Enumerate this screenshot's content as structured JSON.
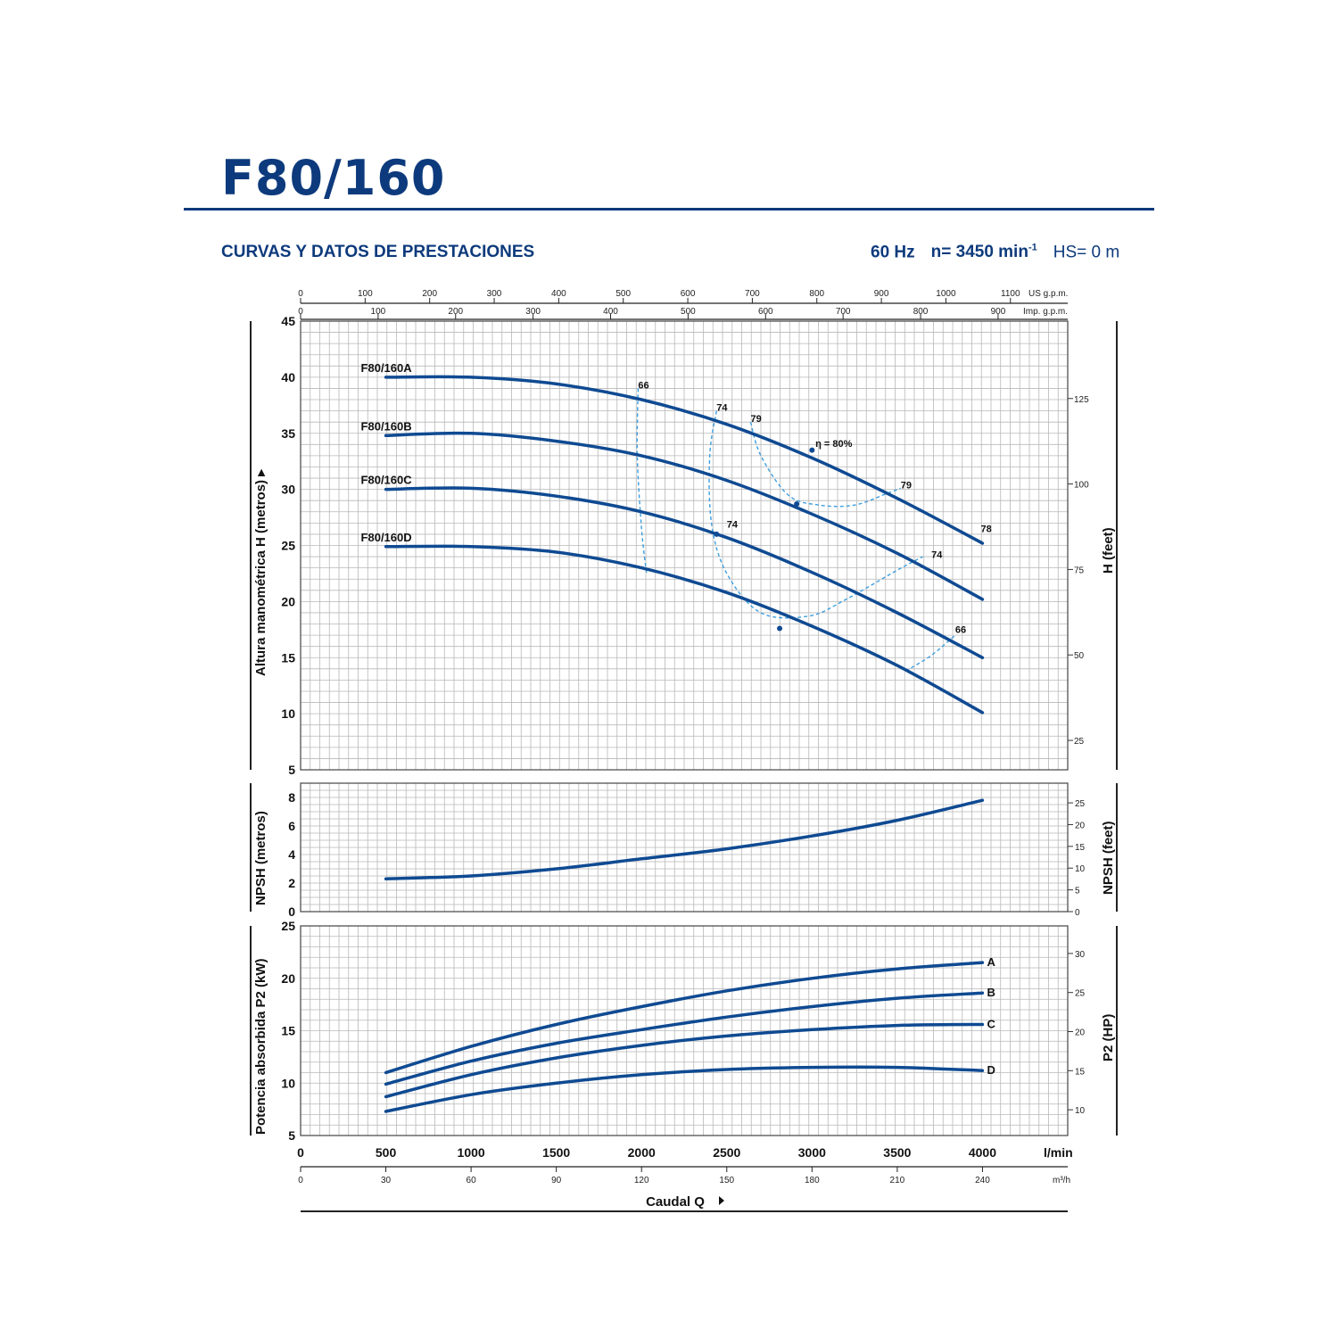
{
  "header": {
    "model": "F80/160",
    "subtitle": "CURVAS Y DATOS DE PRESTACIONES",
    "frequency": "60 Hz",
    "speed": "n= 3450 min",
    "speed_exp": "-1",
    "hs": "HS= 0 m"
  },
  "chart_data": {
    "type": "line",
    "x_axis": {
      "label": "Caudal Q",
      "unit": "l/min",
      "range": [
        0,
        4500
      ],
      "ticks": [
        0,
        500,
        1000,
        1500,
        2000,
        2500,
        3000,
        3500,
        4000
      ],
      "secondary_m3h": {
        "unit": "m³/h",
        "ticks": [
          0,
          30,
          60,
          90,
          120,
          150,
          180,
          210,
          240
        ]
      },
      "top_us_gpm": {
        "unit": "US g.p.m.",
        "ticks": [
          0,
          100,
          200,
          300,
          400,
          500,
          600,
          700,
          800,
          900,
          1000,
          1100
        ]
      },
      "top_imp_gpm": {
        "unit": "Imp. g.p.m.",
        "ticks": [
          0,
          100,
          200,
          300,
          400,
          500,
          600,
          700,
          800,
          900
        ]
      }
    },
    "head": {
      "ylabel": "Altura manométrica H (metros)",
      "ylabel_right": "H (feet)",
      "ylim": [
        5,
        45
      ],
      "yticks": [
        5,
        10,
        15,
        20,
        25,
        30,
        35,
        40,
        45
      ],
      "yticks_right": [
        25,
        50,
        75,
        100,
        125
      ],
      "series": [
        {
          "name": "F80/160A",
          "x": [
            500,
            1000,
            1500,
            2000,
            2500,
            3000,
            3500,
            4000
          ],
          "y": [
            40.0,
            40.0,
            39.4,
            38.0,
            35.8,
            32.8,
            29.2,
            25.2
          ]
        },
        {
          "name": "F80/160B",
          "x": [
            500,
            1000,
            1500,
            2000,
            2500,
            3000,
            3500,
            4000
          ],
          "y": [
            34.8,
            35.0,
            34.3,
            33.0,
            30.8,
            27.8,
            24.3,
            20.2
          ]
        },
        {
          "name": "F80/160C",
          "x": [
            500,
            1000,
            1500,
            2000,
            2500,
            3000,
            3500,
            4000
          ],
          "y": [
            30.0,
            30.1,
            29.4,
            28.0,
            25.7,
            22.6,
            19.0,
            15.0
          ]
        },
        {
          "name": "F80/160D",
          "x": [
            500,
            1000,
            1500,
            2000,
            2500,
            3000,
            3500,
            4000
          ],
          "y": [
            24.9,
            24.9,
            24.4,
            23.0,
            20.8,
            17.8,
            14.3,
            10.1
          ]
        }
      ],
      "efficiency_labels": [
        {
          "text": "66",
          "x": 1980,
          "y": 39.0
        },
        {
          "text": "74",
          "x": 2440,
          "y": 37.0
        },
        {
          "text": "79",
          "x": 2640,
          "y": 36.0
        },
        {
          "text": "η = 80%",
          "x": 3020,
          "y": 33.8
        },
        {
          "text": "79",
          "x": 3520,
          "y": 30.1
        },
        {
          "text": "78",
          "x": 3990,
          "y": 26.2
        },
        {
          "text": "74",
          "x": 2500,
          "y": 26.6
        },
        {
          "text": "74",
          "x": 3700,
          "y": 23.9
        },
        {
          "text": "66",
          "x": 3840,
          "y": 17.2
        }
      ]
    },
    "npsh": {
      "ylabel": "NPSH (metros)",
      "ylabel_right": "NPSH (feet)",
      "ylim": [
        0,
        9
      ],
      "yticks": [
        0,
        2,
        4,
        6,
        8
      ],
      "yticks_right": [
        0,
        5,
        10,
        15,
        20,
        25
      ],
      "x": [
        500,
        1000,
        1500,
        2000,
        2500,
        3000,
        3500,
        4000
      ],
      "y": [
        2.3,
        2.5,
        3.0,
        3.7,
        4.4,
        5.3,
        6.4,
        7.8
      ]
    },
    "power": {
      "ylabel": "Potencia absorbida P2 (kW)",
      "ylabel_right": "P2 (HP)",
      "ylim": [
        5,
        25
      ],
      "yticks": [
        5,
        10,
        15,
        20,
        25
      ],
      "yticks_right": [
        10,
        15,
        20,
        25,
        30
      ],
      "series": [
        {
          "name": "A",
          "x": [
            500,
            1000,
            1500,
            2000,
            2500,
            3000,
            3500,
            4000
          ],
          "y": [
            11.0,
            13.5,
            15.6,
            17.3,
            18.8,
            20.0,
            20.9,
            21.5
          ]
        },
        {
          "name": "B",
          "x": [
            500,
            1000,
            1500,
            2000,
            2500,
            3000,
            3500,
            4000
          ],
          "y": [
            9.9,
            12.1,
            13.8,
            15.1,
            16.3,
            17.3,
            18.1,
            18.6
          ]
        },
        {
          "name": "C",
          "x": [
            500,
            1000,
            1500,
            2000,
            2500,
            3000,
            3500,
            4000
          ],
          "y": [
            8.7,
            10.8,
            12.4,
            13.6,
            14.5,
            15.1,
            15.5,
            15.6
          ]
        },
        {
          "name": "D",
          "x": [
            500,
            1000,
            1500,
            2000,
            2500,
            3000,
            3500,
            4000
          ],
          "y": [
            7.3,
            8.9,
            10.0,
            10.8,
            11.3,
            11.5,
            11.5,
            11.2
          ]
        }
      ]
    },
    "colors": {
      "curve": "#0f4a92",
      "accent": "#0d3a7c",
      "grid": "#b8b8b8",
      "efficiency": "#3d9fe0"
    }
  }
}
